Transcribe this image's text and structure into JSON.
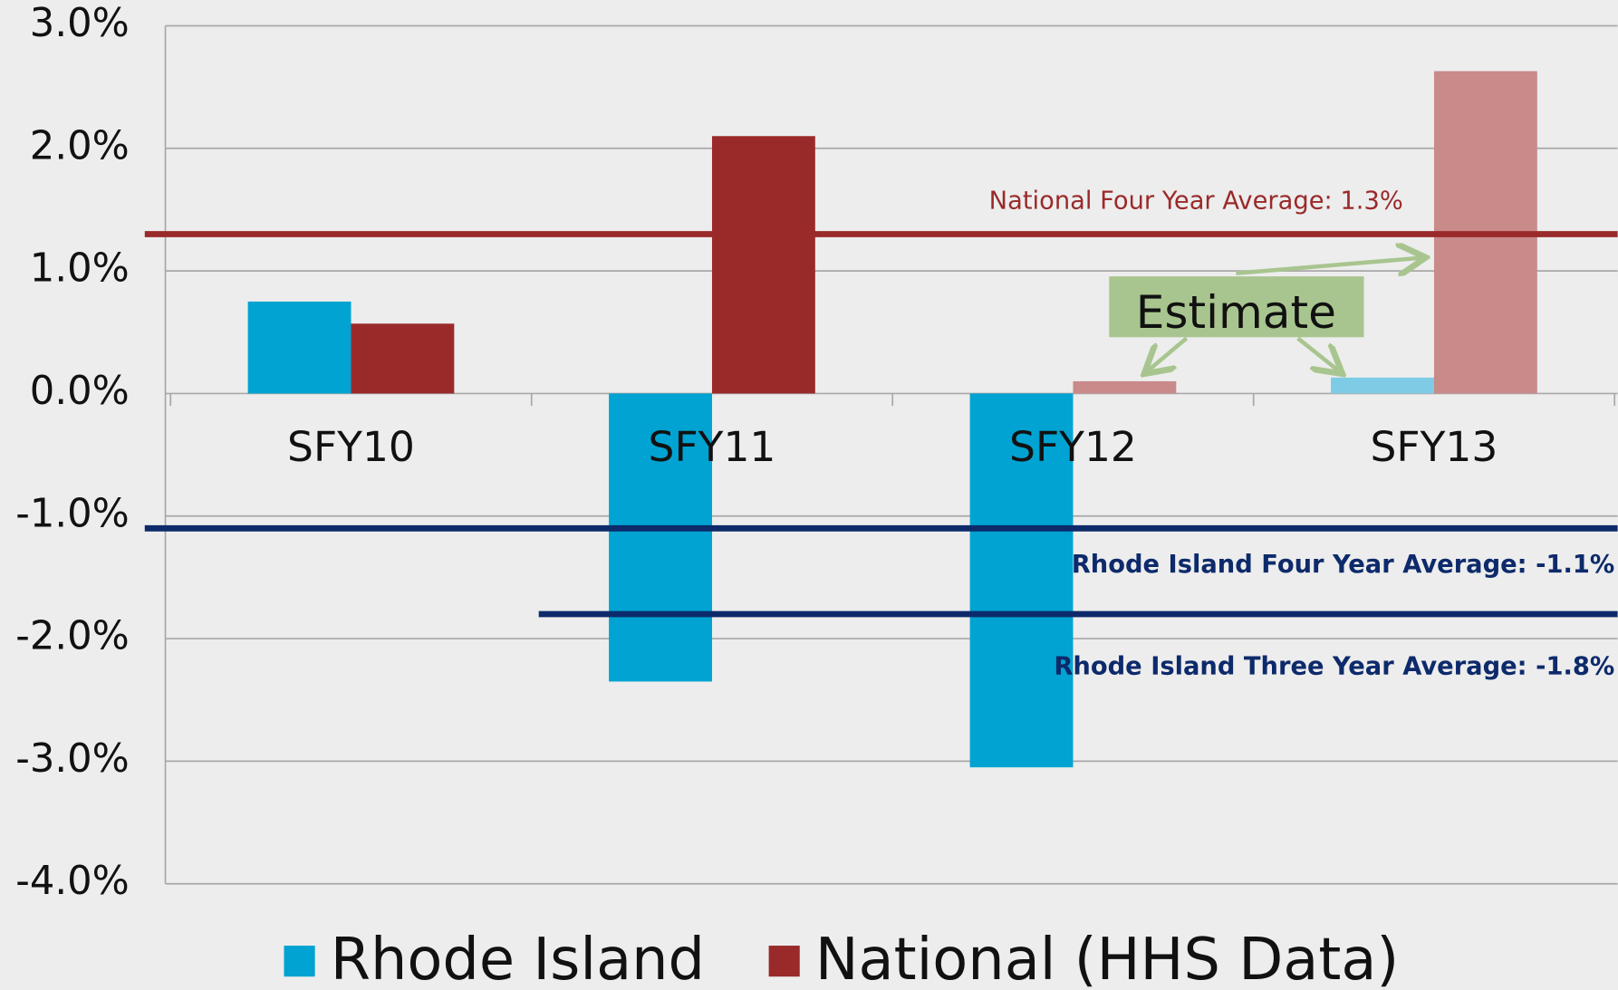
{
  "chart_data": {
    "type": "bar",
    "categories": [
      "SFY10",
      "SFY11",
      "SFY12",
      "SFY13"
    ],
    "series": [
      {
        "name": "Rhode Island",
        "color": "#00a3d1",
        "colors": [
          "#00a3d1",
          "#00a3d1",
          "#00a3d1",
          "#7ecbe5"
        ],
        "values": [
          0.75,
          -2.35,
          -3.05,
          0.13
        ]
      },
      {
        "name": "National (HHS Data)",
        "color": "#9a2a2a",
        "colors": [
          "#9a2a2a",
          "#9a2a2a",
          "#c98a8a",
          "#c98a8a"
        ],
        "values": [
          0.57,
          2.1,
          0.1,
          2.63
        ]
      }
    ],
    "ylim": [
      -4,
      3
    ],
    "yticks": [
      {
        "value": 3,
        "label": "3.0%"
      },
      {
        "value": 2,
        "label": "2.0%"
      },
      {
        "value": 1,
        "label": "1.0%"
      },
      {
        "value": 0,
        "label": "0.0%"
      },
      {
        "value": -1,
        "label": "-1.0%"
      },
      {
        "value": -2,
        "label": "-2.0%"
      },
      {
        "value": -3,
        "label": "-3.0%"
      },
      {
        "value": -4,
        "label": "-4.0%"
      }
    ],
    "grid": true,
    "reference_lines": [
      {
        "label": "National Four Year Average: 1.3%",
        "value": 1.3,
        "color": "#9a2a2a"
      },
      {
        "label": "Rhode Island Four Year Average: -1.1%",
        "value": -1.1,
        "color": "#0d2a6b"
      },
      {
        "label": "Rhode Island Three Year Average: -1.8%",
        "value": -1.8,
        "color": "#0d2a6b",
        "from": "SFY11"
      }
    ],
    "annotation": "Estimate",
    "legend": "bottom"
  }
}
